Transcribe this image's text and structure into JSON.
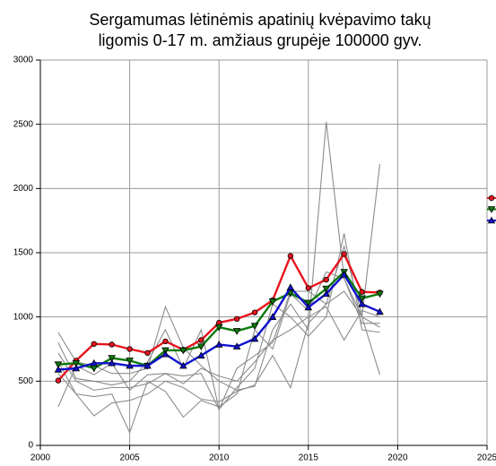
{
  "chart_data": {
    "type": "line",
    "title_lines": [
      "Sergamumas lėtinėmis apatinių kvėpavimo takų",
      "ligomis 0-17 m. amžiaus grupėje 100000 gyv."
    ],
    "x": [
      2001,
      2002,
      2003,
      2004,
      2005,
      2006,
      2007,
      2008,
      2009,
      2010,
      2011,
      2012,
      2013,
      2014,
      2015,
      2016,
      2017,
      2018,
      2019
    ],
    "xlim": [
      2000,
      2025
    ],
    "xticks": [
      2000,
      2005,
      2010,
      2015,
      2020,
      2025
    ],
    "ylim": [
      0,
      3000
    ],
    "yticks": [
      0,
      500,
      1000,
      1500,
      2000,
      2500,
      3000
    ],
    "grid": true,
    "series": [
      {
        "color": "#8c8c8c",
        "values": [
          880,
          650,
          620,
          560,
          560,
          600,
          1080,
          760,
          620,
          500,
          430,
          460,
          900,
          1100,
          900,
          2520,
          1300,
          1000,
          550
        ]
      },
      {
        "color": "#8c8c8c",
        "values": [
          800,
          520,
          500,
          470,
          500,
          650,
          900,
          600,
          900,
          280,
          600,
          700,
          800,
          1200,
          1200,
          1100,
          1550,
          1000,
          2190
        ]
      },
      {
        "color": "#8c8c8c",
        "values": [
          300,
          620,
          550,
          640,
          430,
          550,
          560,
          540,
          560,
          280,
          450,
          600,
          1100,
          1000,
          850,
          1000,
          1650,
          900,
          880
        ]
      },
      {
        "color": "#8c8c8c",
        "values": [
          650,
          400,
          230,
          330,
          350,
          400,
          500,
          450,
          360,
          340,
          420,
          470,
          700,
          450,
          950,
          1100,
          1200,
          1000,
          920
        ]
      },
      {
        "color": "#8c8c8c",
        "values": [
          560,
          400,
          380,
          400,
          100,
          500,
          420,
          220,
          350,
          300,
          400,
          900,
          750,
          1180,
          1050,
          1350,
          1300,
          950,
          950
        ]
      },
      {
        "color": "#8c8c8c",
        "values": [
          720,
          500,
          430,
          450,
          450,
          480,
          560,
          480,
          600,
          540,
          500,
          650,
          820,
          900,
          1000,
          1080,
          820,
          1050,
          1000
        ]
      },
      {
        "color": "#e8141e",
        "marker": "circle",
        "values": [
          505,
          660,
          790,
          785,
          750,
          720,
          810,
          745,
          820,
          955,
          985,
          1035,
          1130,
          1475,
          1225,
          1290,
          1490,
          1195,
          1190
        ]
      },
      {
        "color": "#0b7a0b",
        "marker": "triangle-down",
        "values": [
          630,
          640,
          600,
          680,
          660,
          620,
          740,
          740,
          770,
          920,
          890,
          930,
          1120,
          1185,
          1110,
          1220,
          1350,
          1145,
          1180
        ]
      },
      {
        "color": "#1010d0",
        "marker": "triangle-up",
        "values": [
          590,
          600,
          640,
          640,
          620,
          620,
          710,
          620,
          700,
          785,
          770,
          830,
          1000,
          1230,
          1075,
          1180,
          1330,
          1100,
          1040
        ]
      }
    ]
  }
}
